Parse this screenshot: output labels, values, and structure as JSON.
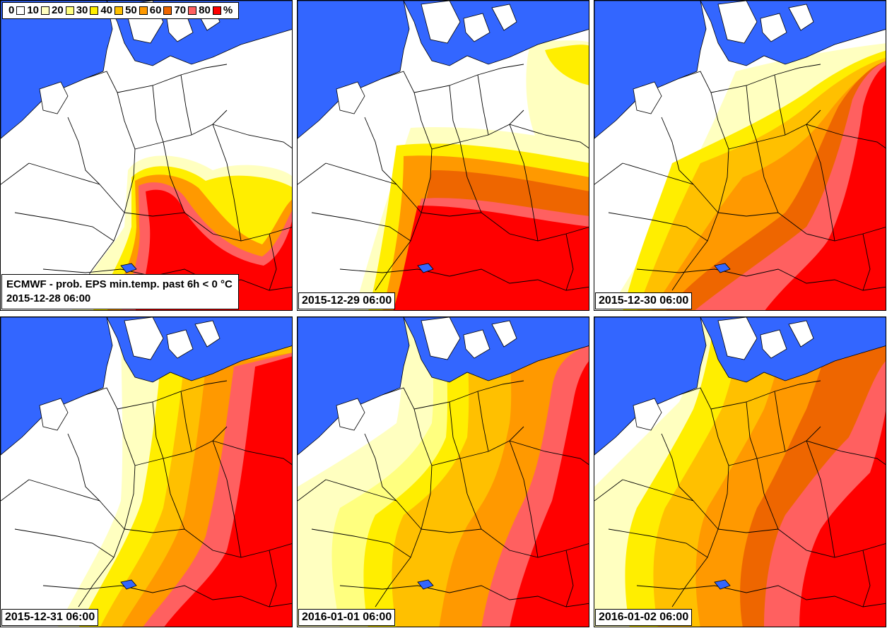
{
  "title": "ECMWF - prob. EPS min.temp. past 6h < 0 °C",
  "legend": {
    "unit": "%",
    "items": [
      {
        "label": "0",
        "color": "#ffffff"
      },
      {
        "label": "10",
        "color": "#ffffc0"
      },
      {
        "label": "20",
        "color": "#ffff7f"
      },
      {
        "label": "30",
        "color": "#ffee00"
      },
      {
        "label": "40",
        "color": "#ffc000"
      },
      {
        "label": "50",
        "color": "#ff9900"
      },
      {
        "label": "60",
        "color": "#ee6600"
      },
      {
        "label": "70",
        "color": "#ff6060"
      },
      {
        "label": "80",
        "color": "#ff0000"
      }
    ]
  },
  "colors": {
    "sea": "#3366ff",
    "land": "#ffffff",
    "border": "#000000"
  },
  "panels": [
    {
      "date": "2015-12-28 06:00"
    },
    {
      "date": "2015-12-29 06:00"
    },
    {
      "date": "2015-12-30 06:00"
    },
    {
      "date": "2015-12-31 06:00"
    },
    {
      "date": "2016-01-01 06:00"
    },
    {
      "date": "2016-01-02 06:00"
    }
  ]
}
